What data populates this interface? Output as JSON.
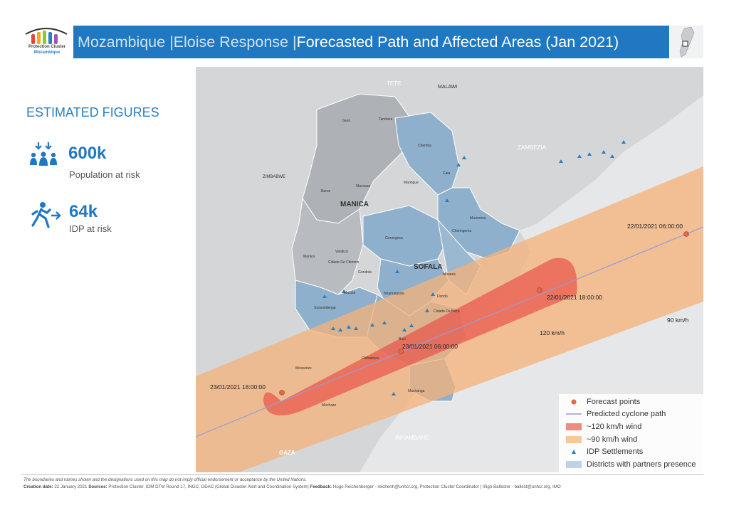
{
  "header": {
    "logo": {
      "line1": "Protection Cluster",
      "line2": "Mozambique"
    },
    "title_part1": "Mozambique |Eloise Response |",
    "title_part2": "Forecasted Path and Affected Areas (Jan 2021)"
  },
  "sidebar": {
    "heading": "ESTIMATED FIGURES",
    "figures": [
      {
        "value": "600k",
        "label": "Population at risk",
        "icon": "population-icon"
      },
      {
        "value": "64k",
        "label": "IDP at risk",
        "icon": "idp-running-icon"
      }
    ]
  },
  "map": {
    "countries": [
      "TETE",
      "MALAWI",
      "ZAMBEZIA",
      "ZIMBABWE",
      "INHAMBANE",
      "GAZA"
    ],
    "provinces": [
      "MANICA",
      "SOFALA"
    ],
    "districts": [
      "Guro",
      "Tambara",
      "Chemba",
      "Caia",
      "Barue",
      "Macossa",
      "Maringue",
      "Marromeu",
      "Cheringoma",
      "Gorongosa",
      "Vanduzi",
      "Manica",
      "Cidade De Chimoio",
      "Gondola",
      "Muanza",
      "Macate",
      "Nhamatanda",
      "Dondo",
      "Cidade Da Beira",
      "Sussundenga",
      "Buzi",
      "Chibabava",
      "Mossurize",
      "Machanga",
      "Machaze"
    ],
    "forecast_points": [
      "22/01/2021 06:00:00",
      "22/01/2021 18:00:00",
      "23/01/2021 06:00:00",
      "23/01/2021 18:00:00"
    ],
    "wind_labels": {
      "outer": "90 km/h",
      "inner": "120 km/h"
    }
  },
  "legend": {
    "items": [
      {
        "label": "Forecast points",
        "symbol": "dot",
        "color": "#e0694a"
      },
      {
        "label": "Predicted cyclone path",
        "symbol": "line",
        "color": "#9a9ad6"
      },
      {
        "label": "~120 km/h wind",
        "symbol": "box",
        "color": "#ee8c82"
      },
      {
        "label": "~90 km/h wind",
        "symbol": "box",
        "color": "#f7c89a"
      },
      {
        "label": "IDP Settlements",
        "symbol": "triangle",
        "color": "#2a7fc0"
      },
      {
        "label": "Districts with partners presence",
        "symbol": "box",
        "color": "#bcd3e8"
      }
    ]
  },
  "footer": {
    "disclaimer": "The boundaries and names shown and the designations used on this map do not imply official endorsement or acceptance by the United Nations.",
    "creation_label": "Creation date:",
    "creation_date": "22 January 2021",
    "sources_label": "Sources:",
    "sources": "Protection Cluster, IOM DTM Round 17, INGC, GDAC (Global Disaster Alert and Coordination System)",
    "feedback_label": "Feedback:",
    "feedback": "Hugo Reichenberger - reichenh@unhcr.org, Protection Cluster Coordinator | Iñigo Ballester - ballest@unhcr.org, IMO"
  },
  "colors": {
    "brand": "#1f78c1",
    "partner_district": "#8fb0cc",
    "wind_90": "#f5b27a",
    "wind_120": "#e85a4f",
    "idp": "#2a7fc0"
  }
}
